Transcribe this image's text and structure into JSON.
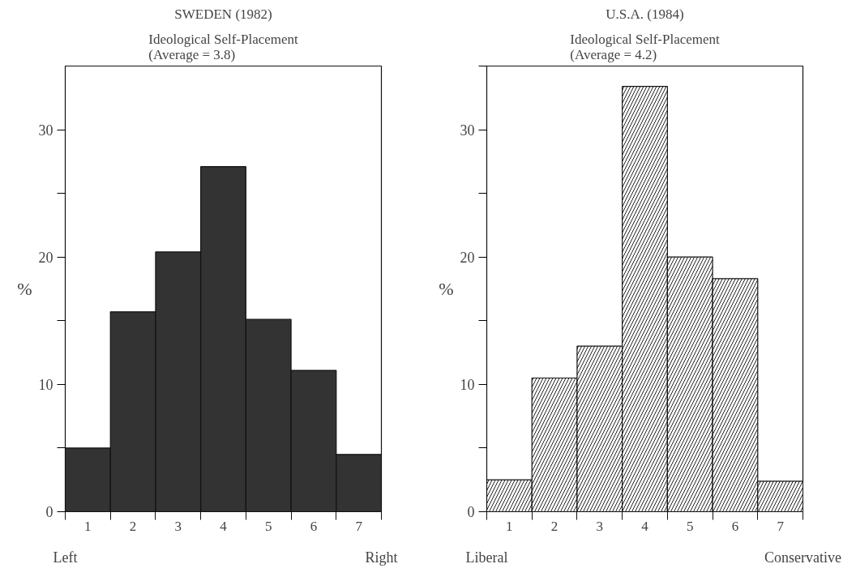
{
  "chart_data": [
    {
      "type": "bar",
      "title": "SWEDEN (1982)",
      "subtitle": "Ideological Self-Placement\n(Average = 3.8)",
      "ylabel": "%",
      "categories": [
        "1",
        "2",
        "3",
        "4",
        "5",
        "6",
        "7"
      ],
      "values": [
        5.0,
        15.7,
        20.4,
        27.1,
        15.1,
        11.1,
        4.5
      ],
      "color": "#333333",
      "ylim": [
        0,
        35
      ],
      "yticks": [
        0,
        10,
        20,
        30,
        {
          "value": 5,
          "label": null
        },
        {
          "value": 15,
          "label": null
        },
        {
          "value": 25,
          "label": null
        }
      ],
      "annotations": [
        "Left",
        "Right"
      ],
      "grid": false
    },
    {
      "type": "bar",
      "title": "U.S.A. (1984)",
      "subtitle": "Ideological Self-Placement\n(Average = 4.2)",
      "ylabel": "%",
      "categories": [
        "1",
        "2",
        "3",
        "4",
        "5",
        "6",
        "7"
      ],
      "values": [
        2.5,
        10.5,
        13.0,
        33.4,
        20.0,
        18.3,
        2.4
      ],
      "color": "#ffffff",
      "ylim": [
        0,
        35
      ],
      "yticks": [
        0,
        10,
        20,
        30,
        {
          "value": 5,
          "label": null
        },
        {
          "value": 15,
          "label": null
        },
        {
          "value": 25,
          "label": null
        },
        {
          "value": 35,
          "label": null
        }
      ],
      "annotations": [
        "Liberal",
        "Conservative"
      ],
      "grid": false
    }
  ]
}
